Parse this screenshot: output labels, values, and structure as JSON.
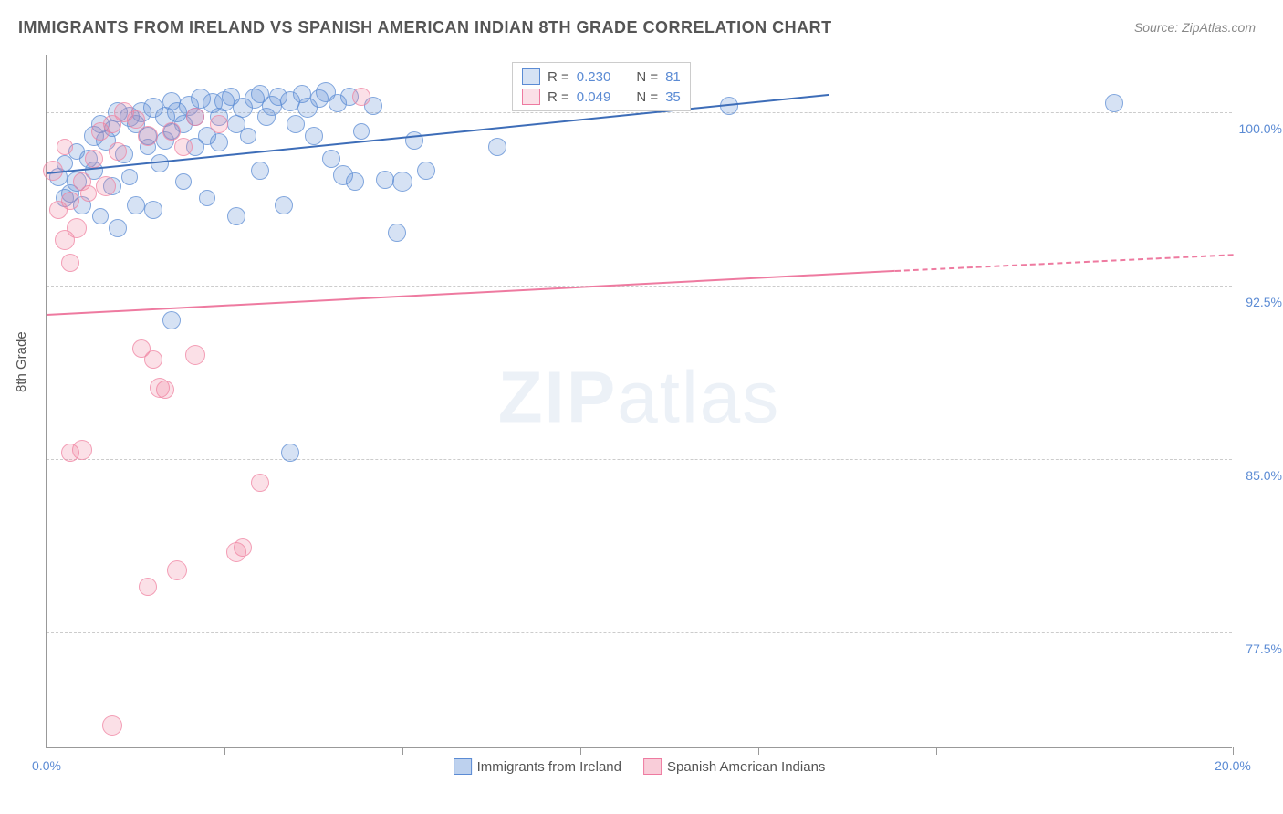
{
  "title": "IMMIGRANTS FROM IRELAND VS SPANISH AMERICAN INDIAN 8TH GRADE CORRELATION CHART",
  "source": "Source: ZipAtlas.com",
  "y_axis_label": "8th Grade",
  "watermark_bold": "ZIP",
  "watermark_rest": "atlas",
  "chart": {
    "type": "scatter",
    "x_domain": [
      0,
      20
    ],
    "y_domain": [
      72.5,
      102.5
    ],
    "x_ticks": [
      0,
      3,
      6,
      9,
      12,
      15,
      20
    ],
    "x_tick_labels": {
      "0": "0.0%",
      "20": "20.0%"
    },
    "y_gridlines": [
      77.5,
      85.0,
      92.5,
      100.0
    ],
    "y_tick_labels": [
      "77.5%",
      "85.0%",
      "92.5%",
      "100.0%"
    ],
    "background_color": "#ffffff",
    "grid_color": "#cccccc",
    "axis_color": "#999999",
    "label_color": "#5b8bd4"
  },
  "series": [
    {
      "name": "Immigrants from Ireland",
      "color_fill": "rgba(91,139,212,0.25)",
      "color_stroke": "#5b8bd4",
      "marker_radius": 9,
      "R": "0.230",
      "N": "81",
      "trend": {
        "x1": 0,
        "y1": 97.4,
        "x2": 13.2,
        "y2": 100.8,
        "color": "#3d6db8",
        "width": 2
      },
      "points": [
        [
          0.2,
          97.2,
          10
        ],
        [
          0.3,
          97.8,
          9
        ],
        [
          0.4,
          96.5,
          10
        ],
        [
          0.5,
          97.0,
          11
        ],
        [
          0.5,
          98.3,
          9
        ],
        [
          0.6,
          96.0,
          10
        ],
        [
          0.7,
          98.0,
          10
        ],
        [
          0.8,
          99.0,
          11
        ],
        [
          0.8,
          97.5,
          10
        ],
        [
          0.9,
          95.5,
          9
        ],
        [
          0.9,
          99.5,
          10
        ],
        [
          1.0,
          98.8,
          11
        ],
        [
          1.1,
          96.8,
          10
        ],
        [
          1.1,
          99.3,
          9
        ],
        [
          1.2,
          95.0,
          10
        ],
        [
          1.2,
          100.0,
          11
        ],
        [
          1.3,
          98.2,
          10
        ],
        [
          1.4,
          99.8,
          11
        ],
        [
          1.4,
          97.2,
          9
        ],
        [
          1.5,
          99.5,
          10
        ],
        [
          1.5,
          96.0,
          10
        ],
        [
          1.6,
          100.0,
          11
        ],
        [
          1.7,
          99.0,
          10
        ],
        [
          1.7,
          98.5,
          9
        ],
        [
          1.8,
          100.2,
          11
        ],
        [
          1.8,
          95.8,
          10
        ],
        [
          1.9,
          97.8,
          10
        ],
        [
          2.0,
          99.8,
          11
        ],
        [
          2.0,
          98.8,
          10
        ],
        [
          2.1,
          100.5,
          10
        ],
        [
          2.1,
          99.2,
          9
        ],
        [
          2.2,
          100.0,
          11
        ],
        [
          2.3,
          99.5,
          10
        ],
        [
          2.3,
          97.0,
          9
        ],
        [
          2.4,
          100.3,
          11
        ],
        [
          2.5,
          98.5,
          10
        ],
        [
          2.5,
          99.8,
          10
        ],
        [
          2.6,
          100.6,
          11
        ],
        [
          2.7,
          96.3,
          9
        ],
        [
          2.7,
          99.0,
          10
        ],
        [
          2.8,
          100.4,
          11
        ],
        [
          2.9,
          98.7,
          10
        ],
        [
          2.9,
          99.8,
          10
        ],
        [
          3.0,
          100.5,
          11
        ],
        [
          3.1,
          100.7,
          10
        ],
        [
          3.2,
          99.5,
          10
        ],
        [
          3.2,
          95.5,
          10
        ],
        [
          3.3,
          100.2,
          11
        ],
        [
          3.4,
          99.0,
          9
        ],
        [
          3.5,
          100.6,
          11
        ],
        [
          3.6,
          97.5,
          10
        ],
        [
          3.6,
          100.8,
          10
        ],
        [
          3.7,
          99.8,
          10
        ],
        [
          3.8,
          100.3,
          11
        ],
        [
          3.9,
          100.7,
          10
        ],
        [
          4.0,
          96.0,
          10
        ],
        [
          4.1,
          100.5,
          11
        ],
        [
          4.2,
          99.5,
          10
        ],
        [
          4.3,
          100.8,
          10
        ],
        [
          4.4,
          100.2,
          11
        ],
        [
          4.5,
          99.0,
          10
        ],
        [
          4.6,
          100.6,
          10
        ],
        [
          4.7,
          100.9,
          11
        ],
        [
          4.8,
          98.0,
          10
        ],
        [
          4.9,
          100.4,
          10
        ],
        [
          5.0,
          97.3,
          11
        ],
        [
          5.1,
          100.7,
          10
        ],
        [
          5.2,
          97.0,
          10
        ],
        [
          5.3,
          99.2,
          9
        ],
        [
          5.5,
          100.3,
          10
        ],
        [
          5.7,
          97.1,
          10
        ],
        [
          5.9,
          94.8,
          10
        ],
        [
          6.0,
          97.0,
          11
        ],
        [
          6.2,
          98.8,
          10
        ],
        [
          6.4,
          97.5,
          10
        ],
        [
          7.6,
          98.5,
          10
        ],
        [
          2.1,
          91.0,
          10
        ],
        [
          4.1,
          85.3,
          10
        ],
        [
          11.5,
          100.3,
          10
        ],
        [
          18.0,
          100.4,
          10
        ],
        [
          0.3,
          96.3,
          10
        ]
      ]
    },
    {
      "name": "Spanish American Indians",
      "color_fill": "rgba(240,130,160,0.25)",
      "color_stroke": "#ee7aa0",
      "marker_radius": 10,
      "R": "0.049",
      "N": "35",
      "trend": {
        "x1": 0,
        "y1": 91.3,
        "x2": 14.3,
        "y2": 93.2,
        "color": "#ee7aa0",
        "width": 2
      },
      "trend_ext": {
        "x1": 14.3,
        "y1": 93.2,
        "x2": 20,
        "y2": 93.9,
        "color": "#ee7aa0"
      },
      "points": [
        [
          0.1,
          97.5,
          11
        ],
        [
          0.2,
          95.8,
          10
        ],
        [
          0.3,
          98.5,
          9
        ],
        [
          0.3,
          94.5,
          11
        ],
        [
          0.4,
          96.2,
          10
        ],
        [
          0.4,
          93.5,
          10
        ],
        [
          0.5,
          95.0,
          11
        ],
        [
          0.6,
          97.0,
          10
        ],
        [
          0.7,
          96.5,
          9
        ],
        [
          0.8,
          98.0,
          10
        ],
        [
          0.9,
          99.2,
          10
        ],
        [
          1.0,
          96.8,
          11
        ],
        [
          1.1,
          99.5,
          10
        ],
        [
          1.2,
          98.3,
          10
        ],
        [
          1.3,
          100.0,
          11
        ],
        [
          1.5,
          99.7,
          10
        ],
        [
          1.6,
          89.8,
          10
        ],
        [
          1.8,
          89.3,
          10
        ],
        [
          1.7,
          99.0,
          11
        ],
        [
          1.9,
          88.1,
          11
        ],
        [
          2.0,
          88.0,
          10
        ],
        [
          2.1,
          99.2,
          10
        ],
        [
          2.3,
          98.5,
          10
        ],
        [
          2.5,
          89.5,
          11
        ],
        [
          2.5,
          99.8,
          10
        ],
        [
          2.9,
          99.5,
          10
        ],
        [
          3.2,
          81.0,
          11
        ],
        [
          3.3,
          81.2,
          10
        ],
        [
          3.6,
          84.0,
          10
        ],
        [
          2.2,
          80.2,
          11
        ],
        [
          1.7,
          79.5,
          10
        ],
        [
          0.6,
          85.4,
          11
        ],
        [
          0.4,
          85.3,
          10
        ],
        [
          1.1,
          73.5,
          11
        ],
        [
          5.3,
          100.7,
          10
        ]
      ]
    }
  ],
  "legend_top": {
    "r_label": "R  =",
    "n_label": "N  ="
  },
  "bottom_legend": [
    {
      "label": "Immigrants from Ireland",
      "fill": "rgba(91,139,212,0.4)",
      "stroke": "#5b8bd4"
    },
    {
      "label": "Spanish American Indians",
      "fill": "rgba(240,130,160,0.4)",
      "stroke": "#ee7aa0"
    }
  ]
}
